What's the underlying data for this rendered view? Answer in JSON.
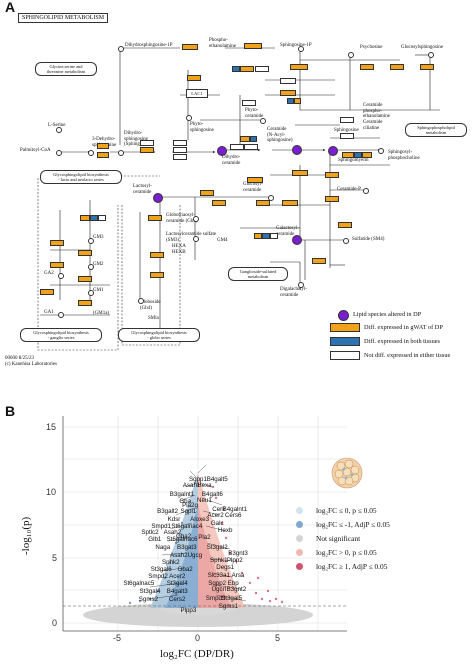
{
  "panel_a": {
    "letter": "A",
    "title": "SPHINGOLIPID METABOLISM",
    "footer_id": "00600 8/25/23",
    "footer_copyright": "(c) Kanehisa Laboratories",
    "labels": [
      {
        "id": "dhs1p",
        "text": "Dihydrosphingosine-1P"
      },
      {
        "id": "pho",
        "text": "Phospho-\nethanolamine"
      },
      {
        "id": "sph1p",
        "text": "Sphingosine-1P"
      },
      {
        "id": "pal",
        "text": "Palmitoyl-CoA"
      },
      {
        "id": "gly",
        "text": "Glycine,serine and\nthreonine metabolism"
      },
      {
        "id": "ser",
        "text": "L-Serine"
      },
      {
        "id": "ketodhs",
        "text": "3-Dehydro-\nsphinganine"
      },
      {
        "id": "dhs",
        "text": "Dihydro-\nsphingosine\n(Sphinganine)"
      },
      {
        "id": "phyto",
        "text": "Phyto-\nsphingosine"
      },
      {
        "id": "phytocer",
        "text": "Phyto-\nceramide"
      },
      {
        "id": "dhcer",
        "text": "Dihydro-\nceramide"
      },
      {
        "id": "cer",
        "text": "Ceramide\n(N-Acyl-\nsphingosine)"
      },
      {
        "id": "sph",
        "text": "Sphingosine"
      },
      {
        "id": "pryt",
        "text": "Psychosine"
      },
      {
        "id": "glucosph",
        "text": "Glucosylsphingosine"
      },
      {
        "id": "cerpe",
        "text": "Ceramide\nphospho-\nethanolamine"
      },
      {
        "id": "cerpc",
        "text": "Ceramide\nciliatine"
      },
      {
        "id": "sm",
        "text": "Sphingomyelin"
      },
      {
        "id": "sphpc",
        "text": "Sphingosyl-\nphosphocholine"
      },
      {
        "id": "cerp",
        "text": "Ceramide-P"
      },
      {
        "id": "lac",
        "text": "Lactosyl-\nceramide"
      },
      {
        "id": "glc",
        "text": "Glucosyl-\nceramide"
      },
      {
        "id": "galcer",
        "text": "Galactosyl-\nceramide"
      },
      {
        "id": "sulf",
        "text": "Sulfatide (SM4)"
      },
      {
        "id": "gm4",
        "text": "GM4"
      },
      {
        "id": "digal",
        "text": "Digalactosyl-\nceramide"
      },
      {
        "id": "glob",
        "text": "Globotriaosyl-\nceramide (Gb3)"
      },
      {
        "id": "lacsul",
        "text": "Lactosylceramide sulfate\n(SM3)"
      },
      {
        "id": "gm3",
        "text": "GM3"
      },
      {
        "id": "gm2",
        "text": "GM2"
      },
      {
        "id": "gm1",
        "text": "GM1"
      },
      {
        "id": "ga2",
        "text": "GA2"
      },
      {
        "id": "ga1",
        "text": "GA1"
      },
      {
        "id": "gm1a",
        "text": "(GM1a)"
      },
      {
        "id": "globoside",
        "text": "Globoside\n(Gb4)"
      },
      {
        "id": "smla",
        "text": "SMla"
      },
      {
        "id": "hexa",
        "text": "HEXA\nHEXB"
      }
    ],
    "boxes": [
      {
        "id": "gsl_lacto",
        "text": "Glycosphingolipid biosynthesis\n- lacto and neolacto series"
      },
      {
        "id": "gsl_gang",
        "text": "Glycosphingolipid biosynthesis\n- ganglio series"
      },
      {
        "id": "gsl_globo",
        "text": "Glycosphingolipid biosynthesis\n- globo series"
      },
      {
        "id": "sphphospho",
        "text": "Sphingophospholipid\nmetabolism"
      },
      {
        "id": "oxlsulf",
        "text": "Ganglioside-sulfated\nmetabolism"
      },
      {
        "id": "lac1",
        "text": "LAC1"
      }
    ],
    "legend": [
      {
        "kind": "node",
        "color": "#7a1fcf",
        "text": "Lipid species altered in DP"
      },
      {
        "kind": "swatch",
        "color": "#f0a21a",
        "text": "Diff. expressed in gWAT of DP"
      },
      {
        "kind": "swatch",
        "color": "#2e73b0",
        "text": "Diff. expressed in both tissues"
      },
      {
        "kind": "swatch",
        "color": "#ffffff",
        "text": "Not diff. expressed in either tissue"
      }
    ]
  },
  "panel_b": {
    "letter": "B",
    "x_label": "log₂FC (DP/DR)",
    "y_label": "-log₁₀(p)",
    "x_ticks": [
      "-5",
      "0",
      "5"
    ],
    "y_ticks": [
      "0",
      "5",
      "10",
      "15"
    ],
    "legend": [
      {
        "color": "#cfe4ef",
        "text": "log₂FC ≤ 0, p ≤ 0.05"
      },
      {
        "color": "#7fa8cf",
        "text": "log₂FC ≤ -1, AdjP ≤ 0.05"
      },
      {
        "color": "#d4d4d4",
        "text": "Not significant"
      },
      {
        "color": "#f2b8ad",
        "text": "log₂FC > 0, p ≤ 0.05"
      },
      {
        "color": "#d0526d",
        "text": "log₂FC ≥ 1, AdjP ≤ 0.05"
      }
    ],
    "gene_labels": [
      {
        "text": "Sgpp1",
        "x": 0.0,
        "y": 10.9
      },
      {
        "text": "B4galt5",
        "x": 1.2,
        "y": 10.9
      },
      {
        "text": "Asah1",
        "x": -0.4,
        "y": 10.45
      },
      {
        "text": "Hexa",
        "x": 0.4,
        "y": 10.45
      },
      {
        "text": "B3galnt1",
        "x": -1.0,
        "y": 9.75
      },
      {
        "text": "B4galt6",
        "x": 0.9,
        "y": 9.75
      },
      {
        "text": "Gba",
        "x": -0.8,
        "y": 9.2
      },
      {
        "text": "Pla2g",
        "x": -0.5,
        "y": 8.9
      },
      {
        "text": "Neu1",
        "x": 0.4,
        "y": 9.3
      },
      {
        "text": "Cerk",
        "x": 1.3,
        "y": 8.65
      },
      {
        "text": "B4galnt1",
        "x": 2.3,
        "y": 8.65
      },
      {
        "text": "B3galt2",
        "x": -1.9,
        "y": 8.5
      },
      {
        "text": "Sgpl1",
        "x": -0.6,
        "y": 8.5
      },
      {
        "text": "Acer2",
        "x": 1.1,
        "y": 8.15
      },
      {
        "text": "Cers6",
        "x": 2.2,
        "y": 8.15
      },
      {
        "text": "Kdsr",
        "x": -1.5,
        "y": 7.9
      },
      {
        "text": "Aloxe3",
        "x": 0.1,
        "y": 7.9
      },
      {
        "text": "Galc",
        "x": 1.2,
        "y": 7.55
      },
      {
        "text": "Smpd1",
        "x": -2.3,
        "y": 7.3
      },
      {
        "text": "St6galnac4",
        "x": -0.7,
        "y": 7.3
      },
      {
        "text": "Hexb",
        "x": 1.7,
        "y": 7.0
      },
      {
        "text": "Sptlc2",
        "x": -3.0,
        "y": 6.85
      },
      {
        "text": "Asah2",
        "x": -1.6,
        "y": 6.85
      },
      {
        "text": "Gba2",
        "x": -0.9,
        "y": 6.55
      },
      {
        "text": "Glb1",
        "x": -2.7,
        "y": 6.35
      },
      {
        "text": "St6galnac6",
        "x": -1.0,
        "y": 6.35
      },
      {
        "text": "Naga",
        "x": -2.2,
        "y": 5.75
      },
      {
        "text": "B3gat3",
        "x": -0.7,
        "y": 5.75
      },
      {
        "text": "Pla2",
        "x": 0.4,
        "y": 6.5
      },
      {
        "text": "St3gal2",
        "x": 1.2,
        "y": 5.75
      },
      {
        "text": "B3gnt3",
        "x": 2.5,
        "y": 5.25
      },
      {
        "text": "Asah2",
        "x": -1.2,
        "y": 5.15
      },
      {
        "text": "Ugcg",
        "x": -0.2,
        "y": 5.15
      },
      {
        "text": "Sphk1",
        "x": 1.3,
        "y": 4.7
      },
      {
        "text": "Plpp2",
        "x": 2.3,
        "y": 4.7
      },
      {
        "text": "Sphk2",
        "x": -1.7,
        "y": 4.6
      },
      {
        "text": "Degs1",
        "x": 1.7,
        "y": 4.2
      },
      {
        "text": "St3gal6",
        "x": -2.3,
        "y": 4.05
      },
      {
        "text": "Gba2",
        "x": -0.8,
        "y": 4.05
      },
      {
        "text": "Smpd2",
        "x": -2.5,
        "y": 3.5
      },
      {
        "text": "Acer2",
        "x": -1.3,
        "y": 3.5
      },
      {
        "text": "Slc33a1",
        "x": 1.3,
        "y": 3.55
      },
      {
        "text": "Arsa",
        "x": 2.5,
        "y": 3.55
      },
      {
        "text": "St6galnac5",
        "x": -3.7,
        "y": 2.95
      },
      {
        "text": "St3gal4",
        "x": -1.3,
        "y": 2.95
      },
      {
        "text": "Sgpp2",
        "x": 1.2,
        "y": 3.0
      },
      {
        "text": "Ebp",
        "x": 2.2,
        "y": 3.0
      },
      {
        "text": "St3gal4",
        "x": -3.0,
        "y": 2.4
      },
      {
        "text": "B4galt3",
        "x": -1.3,
        "y": 2.4
      },
      {
        "text": "Ugcrl",
        "x": 1.3,
        "y": 2.5
      },
      {
        "text": "B3gnt2",
        "x": 2.4,
        "y": 2.5
      },
      {
        "text": "Sgms2",
        "x": -3.1,
        "y": 1.75
      },
      {
        "text": "Cers2",
        "x": -1.3,
        "y": 1.75
      },
      {
        "text": "Smpd3",
        "x": 1.1,
        "y": 1.8
      },
      {
        "text": "St3gal5",
        "x": 2.1,
        "y": 1.8
      },
      {
        "text": "Sgms1",
        "x": 1.9,
        "y": 1.25
      },
      {
        "text": "Plpp3",
        "x": -0.6,
        "y": 0.9
      }
    ]
  }
}
